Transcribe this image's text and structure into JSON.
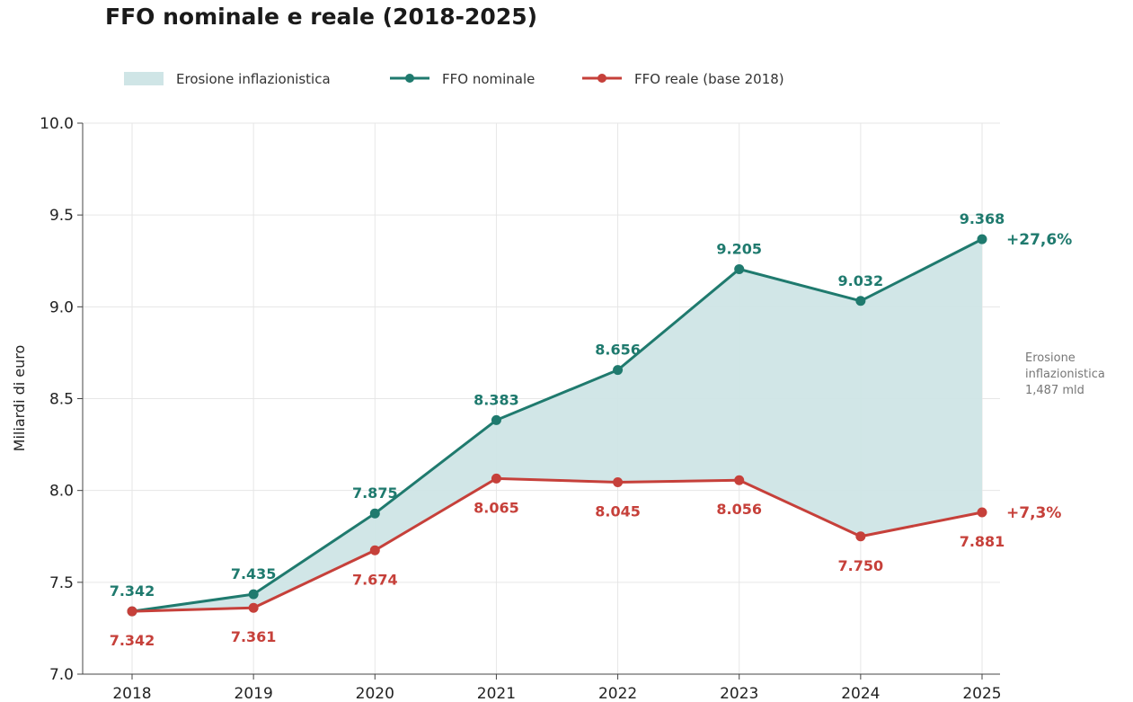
{
  "chart_data": {
    "type": "line",
    "title": "FFO nominale e reale (2018-2025)",
    "xlabel": "",
    "ylabel": "Miliardi di euro",
    "ylim": [
      7.0,
      10.0
    ],
    "yticks": [
      "7.0",
      "7.5",
      "8.0",
      "8.5",
      "9.0",
      "9.5",
      "10.0"
    ],
    "x": [
      "2018",
      "2019",
      "2020",
      "2021",
      "2022",
      "2023",
      "2024",
      "2025"
    ],
    "grid": true,
    "legend_position": "top-left",
    "legend": {
      "area_label": "Erosione inflazionistica",
      "area_color": "#cfe5e6"
    },
    "series": [
      {
        "name": "FFO nominale",
        "color": "#1f7a6e",
        "values": [
          7.342,
          7.435,
          7.875,
          8.383,
          8.656,
          9.205,
          9.032,
          9.368
        ],
        "labels": [
          "7.342",
          "7.435",
          "7.875",
          "8.383",
          "8.656",
          "9.205",
          "9.032",
          "9.368"
        ],
        "end_change": "+27,6%"
      },
      {
        "name": "FFO reale (base 2018)",
        "color": "#c6403a",
        "values": [
          7.342,
          7.361,
          7.674,
          8.065,
          8.045,
          8.056,
          7.75,
          7.881
        ],
        "labels": [
          "7.342",
          "7.361",
          "7.674",
          "8.065",
          "8.045",
          "8.056",
          "7.750",
          "7.881"
        ],
        "end_change": "+7,3%"
      }
    ],
    "annotation": [
      "Erosione",
      "inflazionistica",
      "1,487 mld"
    ]
  }
}
